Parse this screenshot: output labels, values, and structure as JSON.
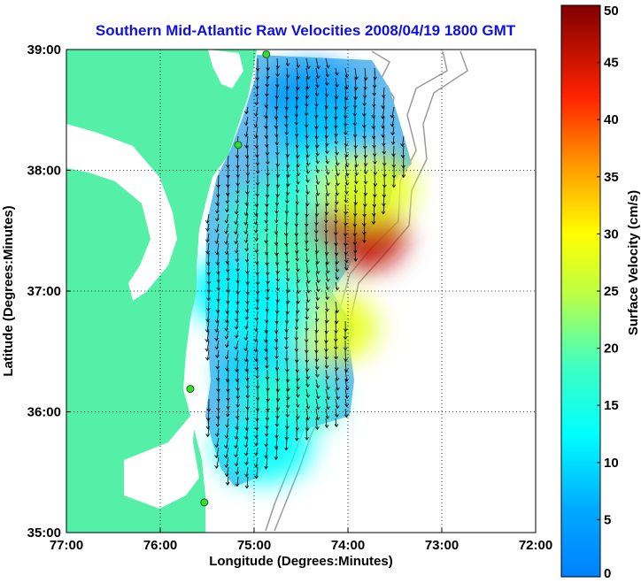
{
  "chart_data": {
    "type": "heatmap",
    "title": "Southern Mid-Atlantic Raw Velocities 2008/04/19 1800 GMT",
    "xlabel": "Longitude (Degrees:Minutes)",
    "ylabel": "Latitude (Degrees:Minutes)",
    "xlim": [
      -77,
      -72
    ],
    "ylim": [
      35,
      39
    ],
    "x_ticks": [
      {
        "value": -77,
        "label": "77:00"
      },
      {
        "value": -76,
        "label": "76:00"
      },
      {
        "value": -75,
        "label": "75:00"
      },
      {
        "value": -74,
        "label": "74:00"
      },
      {
        "value": -73,
        "label": "73:00"
      },
      {
        "value": -72,
        "label": "72:00"
      }
    ],
    "y_ticks": [
      {
        "value": 35,
        "label": "35:00"
      },
      {
        "value": 36,
        "label": "36:00"
      },
      {
        "value": 37,
        "label": "37:00"
      },
      {
        "value": 38,
        "label": "38:00"
      },
      {
        "value": 39,
        "label": "39:00"
      }
    ],
    "grid": true,
    "colorbar": {
      "label": "Surface Velocity (cm/s)",
      "range": [
        0,
        50
      ],
      "ticks": [
        0,
        5,
        10,
        15,
        20,
        25,
        30,
        35,
        40,
        45,
        50
      ],
      "tick_labels": [
        "0",
        "5",
        "10",
        "15",
        "20",
        "25",
        "30",
        "35",
        "40",
        "45",
        "50"
      ],
      "colormap": "jet",
      "placement": "right"
    },
    "regions": [
      {
        "lon": -74.4,
        "lat": 38.6,
        "speed": 4
      },
      {
        "lon": -74.2,
        "lat": 38.3,
        "speed": 8
      },
      {
        "lon": -74.3,
        "lat": 37.9,
        "speed": 15
      },
      {
        "lon": -74.8,
        "lat": 37.6,
        "speed": 17
      },
      {
        "lon": -73.9,
        "lat": 37.45,
        "speed": 46
      },
      {
        "lon": -73.8,
        "lat": 37.85,
        "speed": 28
      },
      {
        "lon": -74.6,
        "lat": 37.2,
        "speed": 19
      },
      {
        "lon": -74.2,
        "lat": 36.7,
        "speed": 28
      },
      {
        "lon": -74.85,
        "lat": 36.8,
        "speed": 13
      },
      {
        "lon": -74.85,
        "lat": 36.3,
        "speed": 10
      },
      {
        "lon": -74.6,
        "lat": 36.1,
        "speed": 17
      },
      {
        "lon": -74.9,
        "lat": 35.7,
        "speed": 13
      },
      {
        "lon": -75.2,
        "lat": 37.0,
        "speed": 12
      }
    ],
    "sites": [
      {
        "lon": -74.87,
        "lat": 38.96
      },
      {
        "lon": -75.17,
        "lat": 38.21
      },
      {
        "lon": -75.68,
        "lat": 36.19
      },
      {
        "lon": -75.53,
        "lat": 35.25
      }
    ],
    "land_color": "#55f0a8",
    "vector_color": "#000000"
  }
}
